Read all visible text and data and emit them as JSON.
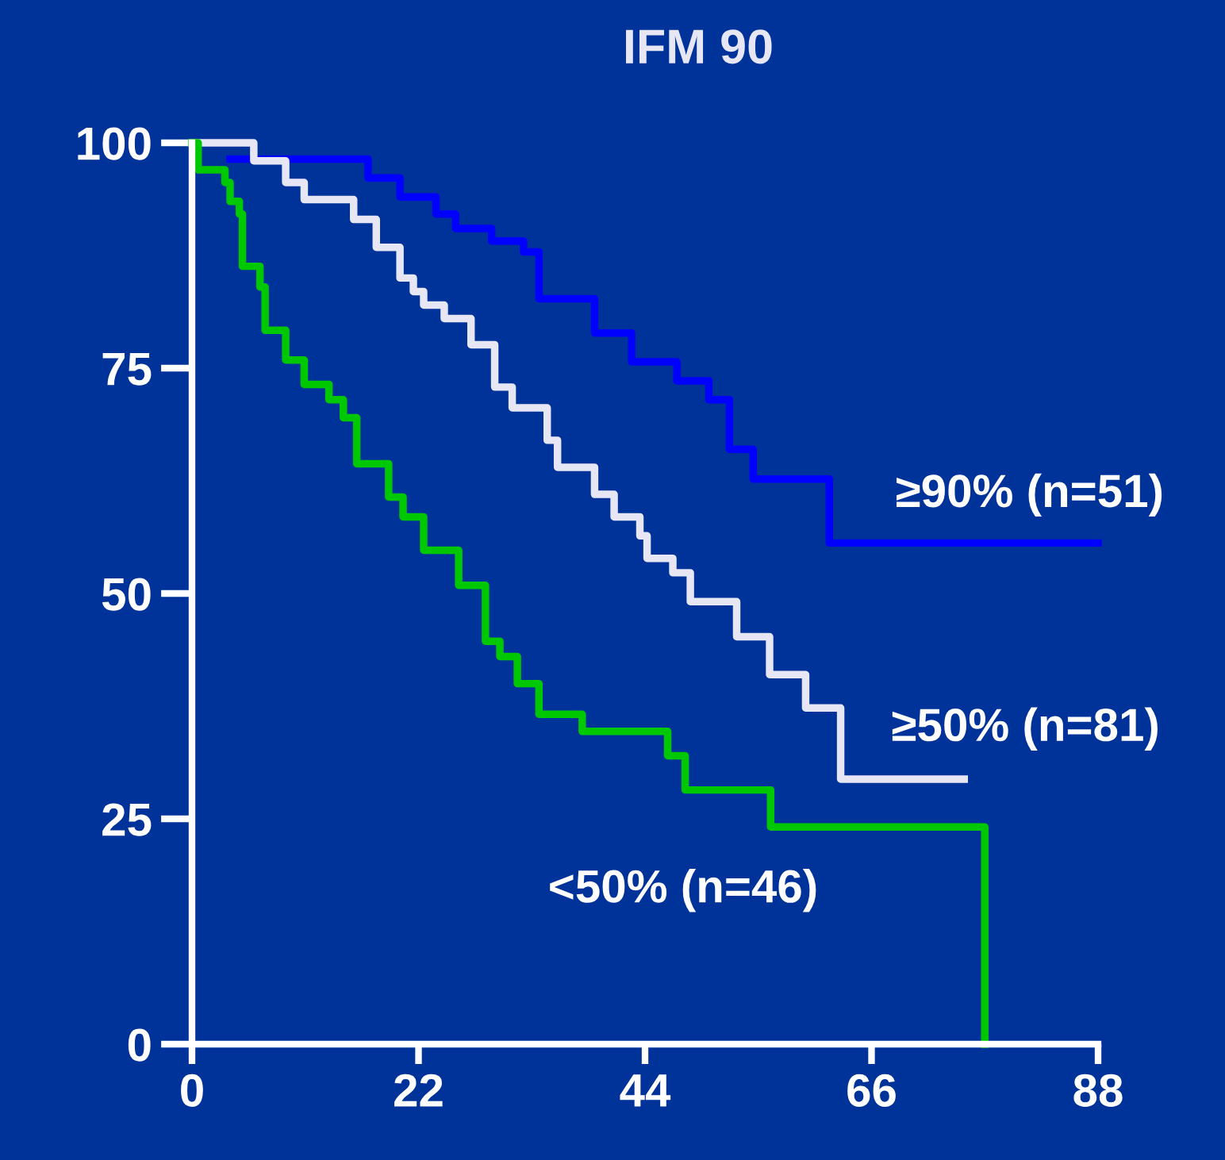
{
  "chart_data": {
    "type": "step",
    "title": "IFM 90",
    "xlim": [
      0,
      88
    ],
    "xticks": [
      0,
      22,
      44,
      66,
      88
    ],
    "ylim": [
      0,
      100
    ],
    "yticks": [
      0,
      25,
      50,
      75,
      100
    ],
    "grid": false,
    "legend": false,
    "marker": "none",
    "line_style": "solid",
    "series": [
      {
        "name": "≥90% (n=51)",
        "color": "#0000ff",
        "x": [
          3.7,
          17.1,
          20.2,
          23.7,
          25.6,
          29.1,
          32.2,
          33.7,
          39.1,
          42.7,
          47.1,
          50.2,
          52.2,
          54.5,
          61.9,
          88
        ],
        "values": [
          98.2,
          96.1,
          94,
          92.1,
          90.5,
          89.1,
          87.9,
          82.7,
          78.9,
          75.7,
          73.6,
          71.5,
          66,
          62.7,
          55.6,
          55.6
        ]
      },
      {
        "name": "≥50% (n=81)",
        "color": "#e6e6f5",
        "x": [
          0,
          6,
          9.1,
          10.9,
          15.7,
          17.9,
          20.2,
          21.5,
          22.5,
          24.5,
          27.1,
          29.4,
          31.1,
          34.5,
          35.5,
          39.1,
          41,
          43.5,
          44.2,
          46.7,
          48.4,
          52.9,
          56.1,
          59.6,
          63,
          75
        ],
        "values": [
          100,
          98,
          95.6,
          93.7,
          91.5,
          88.4,
          85,
          83.5,
          82,
          80.5,
          77.6,
          72.9,
          70.6,
          67,
          64,
          61,
          58.5,
          56.4,
          53.9,
          52.3,
          49.1,
          45.2,
          41,
          37.3,
          29.4,
          29.4
        ]
      },
      {
        "name": "<50% (n=46)",
        "color": "#00c800",
        "x": [
          0,
          0.6,
          3.2,
          3.7,
          4.6,
          4.9,
          6.6,
          7.1,
          9.1,
          10.9,
          13.3,
          14.7,
          16,
          19.1,
          20.5,
          22.5,
          25.9,
          28.5,
          29.9,
          31.6,
          33.7,
          37.9,
          46.2,
          47.9,
          56.2,
          77
        ],
        "values": [
          100,
          97,
          95.6,
          93.5,
          92.1,
          86.3,
          84,
          79.2,
          75.9,
          73.2,
          71.5,
          69.5,
          64.4,
          60.7,
          58.5,
          54.8,
          50.9,
          44.7,
          43,
          40,
          36.6,
          34.7,
          32,
          28.2,
          24.1,
          0
        ]
      }
    ]
  }
}
